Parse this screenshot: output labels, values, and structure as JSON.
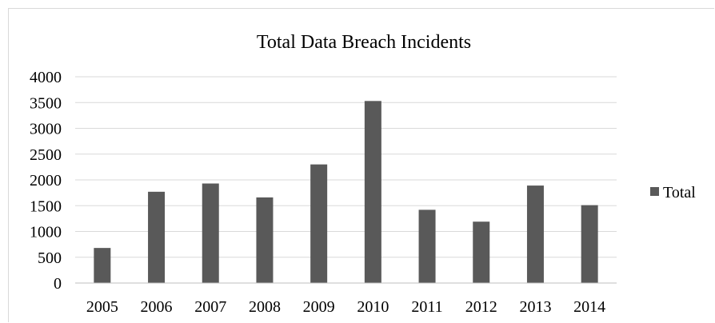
{
  "chart_data": {
    "type": "bar",
    "title": "Total Data Breach Incidents",
    "xlabel": "",
    "ylabel": "",
    "categories": [
      "2005",
      "2006",
      "2007",
      "2008",
      "2009",
      "2010",
      "2011",
      "2012",
      "2013",
      "2014"
    ],
    "series": [
      {
        "name": "Total",
        "color": "#595959",
        "values": [
          680,
          1770,
          1930,
          1660,
          2300,
          3530,
          1420,
          1190,
          1890,
          1510
        ]
      }
    ],
    "ylim": [
      0,
      4000
    ],
    "yticks": [
      "0",
      "500",
      "1000",
      "1500",
      "2000",
      "2500",
      "3000",
      "3500",
      "4000"
    ],
    "grid": true,
    "legend_position": "right"
  },
  "colors": {
    "bar": "#595959",
    "grid": "#d9d9d9",
    "axis": "#bfbfbf"
  }
}
